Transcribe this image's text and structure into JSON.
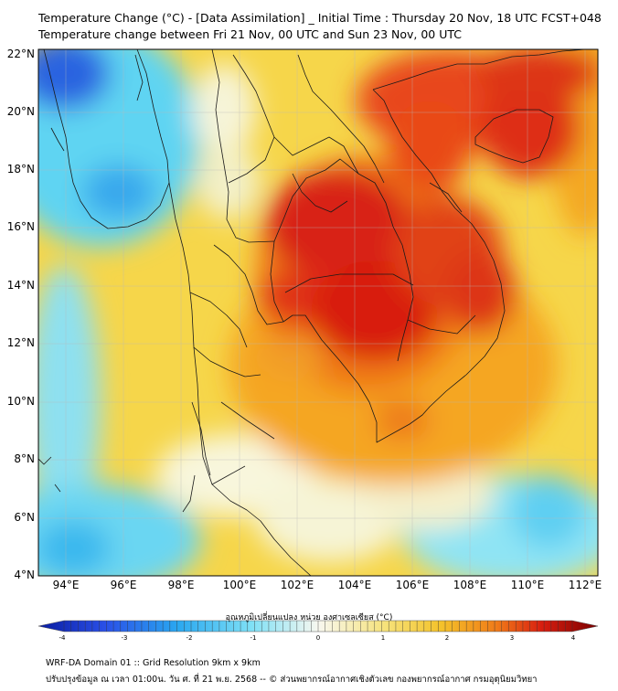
{
  "header": {
    "title_line1": "Temperature Change (°C) - [Data Assimilation] _ Initial Time : Thursday 20 Nov, 18 UTC FCST+048",
    "title_line2": "Temperature change between Fri 21 Nov, 00 UTC and Sun 23 Nov, 00 UTC"
  },
  "map": {
    "lat_labels": [
      "22°N",
      "20°N",
      "18°N",
      "16°N",
      "14°N",
      "12°N",
      "10°N",
      "8°N",
      "6°N",
      "4°N"
    ],
    "lon_labels": [
      "94°E",
      "96°E",
      "98°E",
      "100°E",
      "102°E",
      "104°E",
      "106°E",
      "108°E",
      "110°E",
      "112°E"
    ]
  },
  "colorbar": {
    "title": "อุณหภูมิเปลี่ยนแปลง หน่วย องศาเซลเซียส (°C)",
    "tick_labels": [
      "-4",
      "-3",
      "-2",
      "-1",
      "0",
      "1",
      "2",
      "3",
      "4"
    ]
  },
  "footer": {
    "line1": "WRF-DA Domain 01 :: Grid Resolution 9km x 9km",
    "line2": "ปรับปรุงข้อมูล ณ เวลา 01:00น. วัน ศ. ที่ 21 พ.ย. 2568 -- © ส่วนพยากรณ์อากาศเชิงตัวเลข กองพยากรณ์อากาศ กรมอุตุนิยมวิทยา"
  },
  "colors": {
    "very_cold": "#1a2fd0",
    "cold": "#33c8f0",
    "neutral": "#f6f6dc",
    "warm": "#f5d431",
    "hot": "#f09018",
    "very_hot": "#d81e10",
    "extreme": "#8b0000"
  }
}
